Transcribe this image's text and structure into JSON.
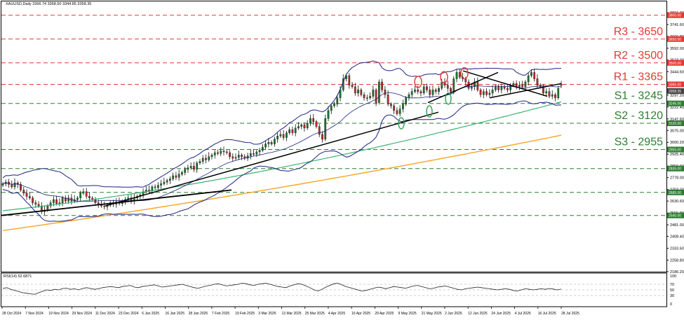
{
  "header": {
    "symbol_line": "XAUUSD,Daily  3366.74 3368.50 3344.85 3358.35",
    "rsi_label": "RSI(14) 52.6871"
  },
  "chart_data": {
    "type": "candlestick",
    "symbol": "XAUUSD",
    "timeframe": "Daily",
    "ohlc_last": {
      "open": 3366.74,
      "high": 3368.5,
      "low": 3344.85,
      "close": 3358.35
    },
    "price_axis_ticks": [
      "3816.40",
      "3741.60",
      "3666.80",
      "3592.00",
      "3518.00",
      "3444.60",
      "3370.40",
      "3297.20",
      "3222.40",
      "3147.60",
      "3075.00",
      "3000.20",
      "2925.40",
      "2850.60",
      "2778.00",
      "2703.20",
      "2630.60",
      "2555.80",
      "2481.00",
      "2408.40",
      "2333.60",
      "2258.80",
      "2186.20"
    ],
    "ylim": [
      2186.2,
      3816.4
    ],
    "x_axis_ticks": [
      "28 Oct 2024",
      "7 Nov 2024",
      "19 Nov 2024",
      "29 Nov 2024",
      "11 Dec 2024",
      "23 Dec 2024",
      "6 Jan 2025",
      "16 Jan 2025",
      "28 Jan 2025",
      "7 Feb 2025",
      "19 Feb 2025",
      "3 Mar 2025",
      "13 Mar 2025",
      "25 Mar 2025",
      "4 Apr 2025",
      "16 Apr 2025",
      "29 Apr 2025",
      "9 May 2025",
      "21 May 2025",
      "2 Jun 2025",
      "12 Jun 2025",
      "24 Jun 2025",
      "4 Jul 2025",
      "16 Jul 2025",
      "28 Jul 2025"
    ],
    "horizontal_levels": [
      {
        "price": 3800,
        "axis_label": "3800.00",
        "color": "#e53935"
      },
      {
        "price": 3650,
        "axis_label": "3650.00",
        "color": "#e53935",
        "text": "R3 - 3650"
      },
      {
        "price": 3500,
        "axis_label": "3500.00",
        "color": "#e53935",
        "text": "R2 - 3500"
      },
      {
        "price": 3365,
        "axis_label": "3365.00",
        "color": "#e53935",
        "text": "R1 - 3365"
      },
      {
        "price": 3245,
        "axis_label": "3245.00",
        "color": "#2e7d32",
        "text": "S1 - 3245"
      },
      {
        "price": 3120,
        "axis_label": "3120.00",
        "color": "#2e7d32",
        "text": "S2 - 3120"
      },
      {
        "price": 2955,
        "axis_label": "2955.00",
        "color": "#2e7d32",
        "text": "S3 - 2955"
      },
      {
        "price": 2835,
        "axis_label": "2835.00",
        "color": "#2e7d32"
      },
      {
        "price": 2685,
        "axis_label": "2685.00",
        "color": "#2e7d32"
      },
      {
        "price": 2540,
        "axis_label": "2540.00",
        "color": "#2e7d32"
      }
    ],
    "current_price": {
      "price": 3358.35,
      "label": "3358.35"
    },
    "candles_close": [
      2740,
      2750,
      2735,
      2720,
      2745,
      2735,
      2700,
      2680,
      2660,
      2650,
      2620,
      2610,
      2600,
      2565,
      2575,
      2600,
      2620,
      2640,
      2615,
      2620,
      2650,
      2630,
      2650,
      2630,
      2640,
      2650,
      2680,
      2690,
      2660,
      2650,
      2640,
      2620,
      2610,
      2600,
      2595,
      2605,
      2620,
      2610,
      2625,
      2615,
      2630,
      2640,
      2650,
      2630,
      2650,
      2660,
      2670,
      2690,
      2700,
      2695,
      2720,
      2715,
      2730,
      2740,
      2750,
      2760,
      2770,
      2790,
      2780,
      2800,
      2810,
      2830,
      2840,
      2850,
      2830,
      2870,
      2880,
      2900,
      2890,
      2910,
      2920,
      2935,
      2930,
      2945,
      2940,
      2935,
      2910,
      2900,
      2905,
      2920,
      2910,
      2900,
      2915,
      2930,
      2925,
      2940,
      2950,
      2970,
      2990,
      3000,
      2990,
      3020,
      3040,
      3050,
      3030,
      3060,
      3080,
      3060,
      3090,
      3100,
      3110,
      3090,
      3120,
      3150,
      3130,
      3100,
      3050,
      3020,
      3150,
      3200,
      3230,
      3240,
      3280,
      3330,
      3400,
      3420,
      3360,
      3350,
      3310,
      3330,
      3300,
      3280,
      3280,
      3290,
      3330,
      3250,
      3380,
      3330,
      3300,
      3240,
      3230,
      3200,
      3180,
      3210,
      3240,
      3280,
      3300,
      3320,
      3330,
      3320,
      3310,
      3350,
      3330,
      3300,
      3330,
      3320,
      3340,
      3380,
      3360,
      3340,
      3320,
      3400,
      3440,
      3410,
      3400,
      3380,
      3340,
      3350,
      3380,
      3330,
      3300,
      3320,
      3300,
      3310,
      3330,
      3350,
      3330,
      3350,
      3340,
      3330,
      3360,
      3370,
      3350,
      3360,
      3350,
      3380,
      3420,
      3440,
      3400,
      3360,
      3350,
      3310,
      3320,
      3290,
      3300,
      3280,
      3340,
      3358.35
    ],
    "candles_open": [
      2730,
      2740,
      2750,
      2735,
      2720,
      2745,
      2735,
      2700,
      2680,
      2660,
      2650,
      2620,
      2610,
      2600,
      2565,
      2575,
      2600,
      2620,
      2640,
      2615,
      2620,
      2650,
      2630,
      2650,
      2630,
      2640,
      2650,
      2680,
      2690,
      2660,
      2650,
      2640,
      2620,
      2610,
      2600,
      2595,
      2605,
      2620,
      2610,
      2625,
      2615,
      2630,
      2640,
      2650,
      2630,
      2650,
      2660,
      2670,
      2690,
      2700,
      2695,
      2720,
      2715,
      2730,
      2740,
      2750,
      2760,
      2770,
      2790,
      2780,
      2800,
      2810,
      2830,
      2840,
      2850,
      2830,
      2870,
      2880,
      2900,
      2890,
      2910,
      2920,
      2935,
      2930,
      2945,
      2940,
      2935,
      2910,
      2900,
      2905,
      2920,
      2910,
      2900,
      2915,
      2930,
      2925,
      2940,
      2950,
      2970,
      2990,
      3000,
      2990,
      3020,
      3040,
      3050,
      3030,
      3060,
      3080,
      3060,
      3090,
      3100,
      3110,
      3090,
      3120,
      3150,
      3130,
      3100,
      3050,
      3020,
      3150,
      3200,
      3230,
      3240,
      3280,
      3330,
      3400,
      3420,
      3360,
      3350,
      3310,
      3330,
      3300,
      3280,
      3280,
      3290,
      3330,
      3250,
      3380,
      3330,
      3300,
      3240,
      3230,
      3200,
      3180,
      3210,
      3240,
      3280,
      3300,
      3320,
      3330,
      3320,
      3310,
      3350,
      3330,
      3300,
      3330,
      3320,
      3340,
      3380,
      3360,
      3340,
      3320,
      3400,
      3440,
      3410,
      3400,
      3380,
      3340,
      3350,
      3380,
      3330,
      3300,
      3320,
      3300,
      3310,
      3330,
      3350,
      3330,
      3350,
      3340,
      3330,
      3360,
      3370,
      3350,
      3360,
      3350,
      3380,
      3420,
      3440,
      3400,
      3360,
      3350,
      3310,
      3320,
      3290,
      3300,
      3280,
      3366.74
    ],
    "ma_200_end": 3045,
    "ma_100_end": 3255,
    "rsi": {
      "period": 14,
      "value": 52.6871,
      "levels": [
        30,
        50,
        70
      ],
      "axis_labels": [
        "100",
        "70",
        "50",
        "30",
        "0"
      ],
      "ylim": [
        0,
        100
      ]
    },
    "rsi_values": [
      55,
      58,
      52,
      48,
      44,
      40,
      38,
      36,
      34,
      40,
      45,
      50,
      48,
      52,
      50,
      55,
      56,
      52,
      54,
      50,
      55,
      58,
      55,
      52,
      54,
      58,
      60,
      62,
      60,
      58,
      62,
      64,
      66,
      60,
      58,
      62,
      64,
      66,
      68,
      64,
      60,
      62,
      64,
      66,
      68,
      70,
      66,
      62,
      58,
      56,
      60,
      64,
      66,
      70,
      72,
      68,
      64,
      66,
      68,
      70,
      74,
      72,
      68,
      66,
      70,
      72,
      74,
      70,
      66,
      62,
      60,
      58,
      64,
      68,
      72,
      70,
      64,
      58,
      50,
      46,
      52,
      60,
      66,
      72,
      74,
      68,
      62,
      58,
      54,
      50,
      46,
      48,
      52,
      56,
      60,
      58,
      54,
      58,
      62,
      60,
      58,
      56,
      60,
      64,
      66,
      62,
      58,
      54,
      56,
      60,
      62,
      64,
      60,
      56,
      52,
      50,
      54,
      56,
      58,
      60,
      58,
      56,
      54,
      52,
      50,
      52,
      54,
      52,
      48,
      46,
      50,
      54,
      52,
      50,
      52,
      54,
      52,
      55,
      53,
      50,
      52.6871
    ]
  }
}
